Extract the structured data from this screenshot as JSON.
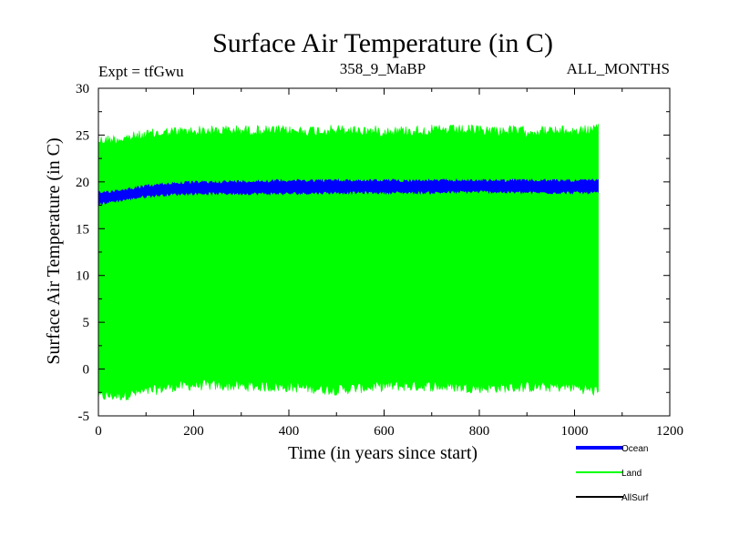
{
  "chart_data": {
    "type": "line",
    "title": "Surface Air Temperature (in C)",
    "subtitle_left": "Expt = tfGwu",
    "subtitle_center": "358_9_MaBP",
    "subtitle_right": "ALL_MONTHS",
    "xlabel": "Time (in years since start)",
    "ylabel": "Surface Air Temperature (in C)",
    "xlim": [
      0,
      1200
    ],
    "ylim": [
      -5,
      30
    ],
    "xticks": [
      0,
      200,
      400,
      600,
      800,
      1000,
      1200
    ],
    "yticks": [
      -5,
      0,
      5,
      10,
      15,
      20,
      25,
      30
    ],
    "xtick_labels": [
      "0",
      "200",
      "400",
      "600",
      "800",
      "1000",
      "1200"
    ],
    "ytick_labels": [
      "-5",
      "0",
      "5",
      "10",
      "15",
      "20",
      "25",
      "30"
    ],
    "series": [
      {
        "name": "Land",
        "color": "#00ff00",
        "x": [
          0,
          50,
          100,
          150,
          200,
          300,
          400,
          500,
          600,
          700,
          800,
          900,
          1000,
          1050
        ],
        "upper": [
          25.0,
          25.2,
          25.6,
          25.9,
          26.0,
          26.1,
          26.0,
          26.1,
          26.0,
          26.1,
          26.1,
          26.0,
          26.0,
          26.2
        ],
        "lower": [
          -3.5,
          -3.4,
          -3.0,
          -2.5,
          -2.3,
          -2.4,
          -2.5,
          -2.8,
          -2.4,
          -2.4,
          -2.6,
          -2.5,
          -2.5,
          -3.0
        ]
      },
      {
        "name": "Ocean",
        "color": "#0000ff",
        "x": [
          0,
          50,
          100,
          150,
          200,
          300,
          400,
          500,
          600,
          700,
          800,
          900,
          1000,
          1050
        ],
        "upper": [
          19.0,
          19.3,
          19.7,
          20.0,
          20.1,
          20.2,
          20.3,
          20.3,
          20.3,
          20.3,
          20.3,
          20.3,
          20.3,
          20.3
        ],
        "lower": [
          17.5,
          17.9,
          18.3,
          18.5,
          18.6,
          18.6,
          18.6,
          18.7,
          18.7,
          18.7,
          18.8,
          18.7,
          18.7,
          18.7
        ]
      },
      {
        "name": "AllSurf",
        "color": "#000000",
        "x": [],
        "upper": [],
        "lower": []
      }
    ],
    "legend": {
      "placement": "bottom-right",
      "entries": [
        "Ocean",
        "Land",
        "AllSurf"
      ]
    }
  }
}
